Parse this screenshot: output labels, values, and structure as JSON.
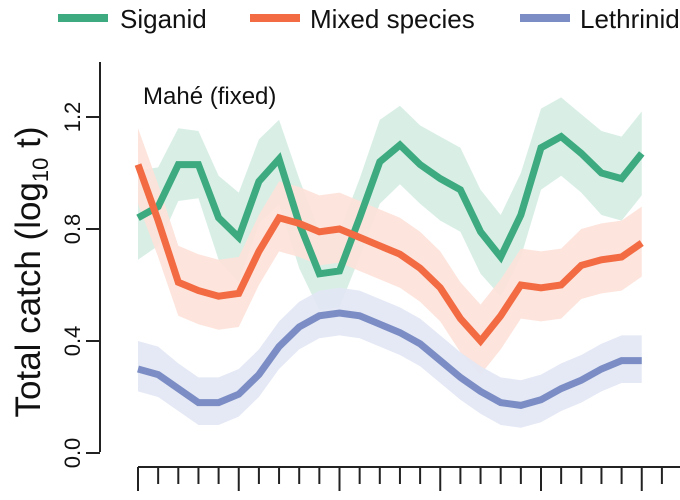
{
  "chart_data": {
    "type": "line",
    "panel_label": "Mahé (fixed)",
    "ylabel": "Total catch (log",
    "ylabel_sub": "10",
    "ylabel_tail": " t)",
    "ylim": [
      0.0,
      1.4
    ],
    "yticks": [
      0.0,
      0.4,
      0.8,
      1.2
    ],
    "ytick_labels": [
      "0.0",
      "0.4",
      "0.8",
      "1.2"
    ],
    "x": [
      1,
      2,
      3,
      4,
      5,
      6,
      7,
      8,
      9,
      10,
      11,
      12,
      13,
      14,
      15,
      16,
      17,
      18,
      19,
      20,
      21,
      22,
      23,
      24,
      25,
      26
    ],
    "xlim": [
      0.5,
      27.0
    ],
    "xtick_count": 27,
    "legend_position": "top",
    "series": [
      {
        "name": "Siganid",
        "color": "#3daa80",
        "band_color": "#d5ede3",
        "values": [
          0.84,
          0.88,
          1.03,
          1.03,
          0.84,
          0.77,
          0.97,
          1.05,
          0.82,
          0.64,
          0.65,
          0.84,
          1.04,
          1.1,
          1.03,
          0.98,
          0.94,
          0.79,
          0.7,
          0.85,
          1.09,
          1.13,
          1.07,
          1.0,
          0.98,
          1.07
        ],
        "lower": [
          0.69,
          0.74,
          0.9,
          0.91,
          0.69,
          0.61,
          0.82,
          0.89,
          0.66,
          0.51,
          0.52,
          0.7,
          0.89,
          0.96,
          0.89,
          0.83,
          0.79,
          0.64,
          0.56,
          0.7,
          0.94,
          0.99,
          0.93,
          0.85,
          0.83,
          0.92
        ],
        "upper": [
          1.01,
          1.02,
          1.16,
          1.15,
          0.99,
          0.93,
          1.12,
          1.19,
          0.98,
          0.79,
          0.79,
          0.98,
          1.19,
          1.24,
          1.17,
          1.13,
          1.09,
          0.94,
          0.85,
          1.0,
          1.23,
          1.27,
          1.21,
          1.15,
          1.13,
          1.22
        ]
      },
      {
        "name": "Mixed species",
        "color": "#f26b43",
        "band_color": "#fde1d8",
        "values": [
          1.03,
          0.83,
          0.61,
          0.58,
          0.56,
          0.57,
          0.72,
          0.84,
          0.82,
          0.79,
          0.8,
          0.77,
          0.74,
          0.71,
          0.66,
          0.59,
          0.48,
          0.4,
          0.49,
          0.6,
          0.59,
          0.6,
          0.67,
          0.69,
          0.7,
          0.75
        ],
        "lower": [
          0.89,
          0.7,
          0.49,
          0.46,
          0.44,
          0.45,
          0.6,
          0.72,
          0.7,
          0.67,
          0.68,
          0.65,
          0.62,
          0.59,
          0.54,
          0.47,
          0.36,
          0.28,
          0.37,
          0.48,
          0.47,
          0.48,
          0.55,
          0.57,
          0.58,
          0.63
        ],
        "upper": [
          1.16,
          0.96,
          0.74,
          0.71,
          0.69,
          0.7,
          0.85,
          0.97,
          0.95,
          0.92,
          0.93,
          0.9,
          0.87,
          0.84,
          0.79,
          0.72,
          0.61,
          0.53,
          0.62,
          0.73,
          0.72,
          0.73,
          0.8,
          0.82,
          0.83,
          0.88
        ]
      },
      {
        "name": "Lethrinid",
        "color": "#7b8dc4",
        "band_color": "#e2e7f4",
        "values": [
          0.3,
          0.28,
          0.23,
          0.18,
          0.18,
          0.21,
          0.28,
          0.38,
          0.45,
          0.49,
          0.5,
          0.49,
          0.46,
          0.43,
          0.39,
          0.33,
          0.27,
          0.22,
          0.18,
          0.17,
          0.19,
          0.23,
          0.26,
          0.3,
          0.33,
          0.33
        ],
        "lower": [
          0.22,
          0.2,
          0.15,
          0.1,
          0.1,
          0.13,
          0.2,
          0.3,
          0.37,
          0.41,
          0.42,
          0.41,
          0.38,
          0.35,
          0.31,
          0.25,
          0.19,
          0.14,
          0.1,
          0.09,
          0.11,
          0.15,
          0.18,
          0.22,
          0.25,
          0.25
        ],
        "upper": [
          0.4,
          0.38,
          0.32,
          0.27,
          0.27,
          0.3,
          0.37,
          0.47,
          0.54,
          0.58,
          0.59,
          0.58,
          0.55,
          0.52,
          0.48,
          0.42,
          0.36,
          0.31,
          0.27,
          0.26,
          0.28,
          0.32,
          0.35,
          0.39,
          0.42,
          0.42
        ]
      }
    ]
  }
}
